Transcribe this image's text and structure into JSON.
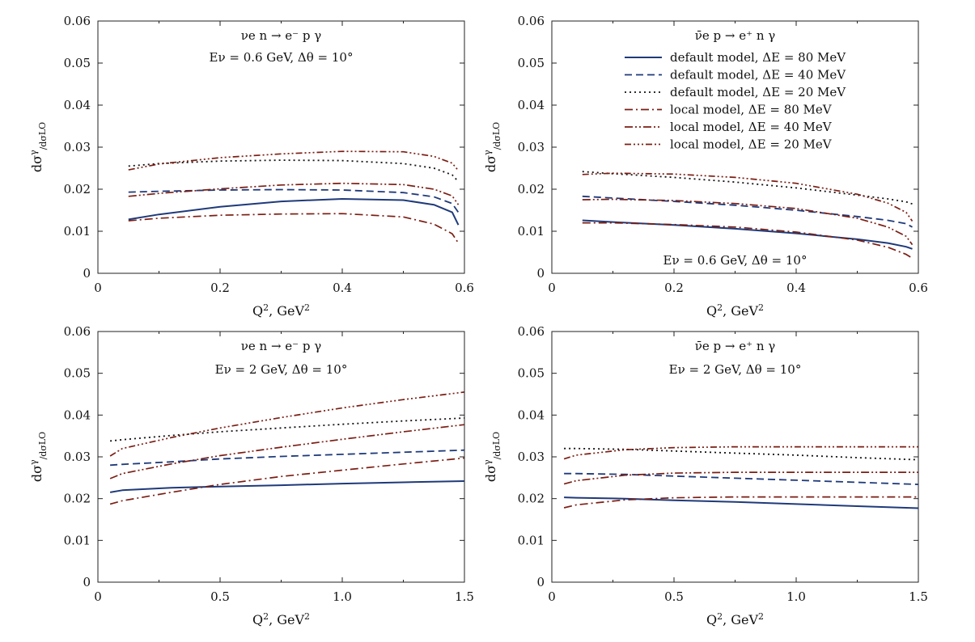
{
  "legend": {
    "entries": [
      "default model, ΔE = 80 MeV",
      "default model, ΔE = 40 MeV",
      "default model, ΔE = 20 MeV",
      "local model, ΔE = 80 MeV",
      "local model, ΔE = 40 MeV",
      "local model, ΔE = 20 MeV"
    ],
    "placement": "top-right panel, upper right"
  },
  "colors": {
    "default": "#1f3a7a",
    "local": "#7a1e14",
    "dotted": "#111111"
  },
  "chart_data": [
    {
      "type": "line",
      "reaction": "νe n → e⁻ p γ",
      "energy_label": "Eν = 0.6 GeV, Δθ = 10°",
      "xlabel": "Q², GeV²",
      "ylabel": "dσγ/dσLO",
      "xlim": [
        0,
        0.6
      ],
      "ylim": [
        0,
        0.06
      ],
      "xticks": [
        "0",
        "0.2",
        "0.4",
        "0.6"
      ],
      "yticks": [
        "0",
        "0.01",
        "0.02",
        "0.03",
        "0.04",
        "0.05",
        "0.06"
      ],
      "series": [
        {
          "name": "default model, ΔE = 80 MeV",
          "x": [
            0.05,
            0.1,
            0.2,
            0.3,
            0.4,
            0.5,
            0.55,
            0.58,
            0.59
          ],
          "y": [
            0.0128,
            0.014,
            0.0158,
            0.0171,
            0.0177,
            0.0174,
            0.0163,
            0.0145,
            0.0115
          ]
        },
        {
          "name": "default model, ΔE = 40 MeV",
          "x": [
            0.05,
            0.1,
            0.2,
            0.3,
            0.4,
            0.5,
            0.55,
            0.58,
            0.59
          ],
          "y": [
            0.0193,
            0.0195,
            0.0198,
            0.0199,
            0.0198,
            0.0192,
            0.0182,
            0.0166,
            0.0145
          ]
        },
        {
          "name": "default model, ΔE = 20 MeV",
          "x": [
            0.05,
            0.1,
            0.2,
            0.3,
            0.4,
            0.5,
            0.55,
            0.58,
            0.59
          ],
          "y": [
            0.0255,
            0.0261,
            0.0267,
            0.0269,
            0.0268,
            0.0261,
            0.025,
            0.0234,
            0.0218
          ]
        },
        {
          "name": "local model, ΔE = 80 MeV",
          "x": [
            0.05,
            0.1,
            0.2,
            0.3,
            0.4,
            0.5,
            0.55,
            0.58,
            0.59
          ],
          "y": [
            0.0125,
            0.0131,
            0.0138,
            0.0141,
            0.0142,
            0.0134,
            0.0117,
            0.0094,
            0.0072
          ]
        },
        {
          "name": "local model, ΔE = 40 MeV",
          "x": [
            0.05,
            0.1,
            0.2,
            0.3,
            0.4,
            0.5,
            0.55,
            0.58,
            0.59
          ],
          "y": [
            0.0183,
            0.019,
            0.0201,
            0.021,
            0.0214,
            0.0211,
            0.02,
            0.0184,
            0.0163
          ]
        },
        {
          "name": "local model, ΔE = 20 MeV",
          "x": [
            0.05,
            0.1,
            0.2,
            0.3,
            0.4,
            0.5,
            0.55,
            0.58,
            0.59
          ],
          "y": [
            0.0246,
            0.026,
            0.0275,
            0.0284,
            0.029,
            0.0289,
            0.0278,
            0.0262,
            0.0244
          ]
        }
      ]
    },
    {
      "type": "line",
      "reaction": "ν̄e p → e⁺ n γ",
      "energy_label": "Eν = 0.6 GeV, Δθ = 10°",
      "xlabel": "Q², GeV²",
      "ylabel": "dσγ/dσLO",
      "xlim": [
        0,
        0.6
      ],
      "ylim": [
        0,
        0.06
      ],
      "xticks": [
        "0",
        "0.2",
        "0.4",
        "0.6"
      ],
      "yticks": [
        "0",
        "0.01",
        "0.02",
        "0.03",
        "0.04",
        "0.05",
        "0.06"
      ],
      "series": [
        {
          "name": "default model, ΔE = 80 MeV",
          "x": [
            0.05,
            0.1,
            0.2,
            0.3,
            0.4,
            0.5,
            0.55,
            0.58,
            0.59
          ],
          "y": [
            0.0126,
            0.0122,
            0.0115,
            0.0106,
            0.0095,
            0.0081,
            0.0072,
            0.0063,
            0.0058
          ]
        },
        {
          "name": "default model, ΔE = 40 MeV",
          "x": [
            0.05,
            0.1,
            0.2,
            0.3,
            0.4,
            0.5,
            0.55,
            0.58,
            0.59
          ],
          "y": [
            0.0183,
            0.0179,
            0.0171,
            0.0162,
            0.015,
            0.0135,
            0.0126,
            0.0118,
            0.011
          ]
        },
        {
          "name": "default model, ΔE = 20 MeV",
          "x": [
            0.05,
            0.1,
            0.2,
            0.3,
            0.4,
            0.5,
            0.55,
            0.58,
            0.59
          ],
          "y": [
            0.0242,
            0.0237,
            0.0228,
            0.0217,
            0.0203,
            0.0186,
            0.0177,
            0.017,
            0.0165
          ]
        },
        {
          "name": "local model, ΔE = 80 MeV",
          "x": [
            0.05,
            0.1,
            0.2,
            0.3,
            0.4,
            0.5,
            0.55,
            0.58,
            0.59
          ],
          "y": [
            0.012,
            0.012,
            0.0116,
            0.011,
            0.0098,
            0.0079,
            0.0062,
            0.0045,
            0.0036
          ]
        },
        {
          "name": "local model, ΔE = 40 MeV",
          "x": [
            0.05,
            0.1,
            0.2,
            0.3,
            0.4,
            0.5,
            0.55,
            0.58,
            0.59
          ],
          "y": [
            0.0175,
            0.0176,
            0.0173,
            0.0166,
            0.0154,
            0.0131,
            0.011,
            0.0088,
            0.0068
          ]
        },
        {
          "name": "local model, ΔE = 20 MeV",
          "x": [
            0.05,
            0.1,
            0.2,
            0.3,
            0.4,
            0.5,
            0.55,
            0.58,
            0.59
          ],
          "y": [
            0.0235,
            0.0238,
            0.0236,
            0.0228,
            0.0214,
            0.0188,
            0.0167,
            0.0145,
            0.0124
          ]
        }
      ]
    },
    {
      "type": "line",
      "reaction": "νe n → e⁻ p γ",
      "energy_label": "Eν = 2 GeV, Δθ = 10°",
      "xlabel": "Q², GeV²",
      "ylabel": "dσγ/dσLO",
      "xlim": [
        0,
        1.5
      ],
      "ylim": [
        0,
        0.06
      ],
      "xticks": [
        "0",
        "0.5",
        "1.0",
        "1.5"
      ],
      "yticks": [
        "0",
        "0.01",
        "0.02",
        "0.03",
        "0.04",
        "0.05",
        "0.06"
      ],
      "series": [
        {
          "name": "default model, ΔE = 80 MeV",
          "x": [
            0.05,
            0.1,
            0.3,
            0.5,
            0.75,
            1.0,
            1.25,
            1.5
          ],
          "y": [
            0.0215,
            0.022,
            0.0226,
            0.0229,
            0.0232,
            0.0236,
            0.0239,
            0.0242
          ]
        },
        {
          "name": "default model, ΔE = 40 MeV",
          "x": [
            0.05,
            0.1,
            0.3,
            0.5,
            0.75,
            1.0,
            1.25,
            1.5
          ],
          "y": [
            0.028,
            0.0282,
            0.0288,
            0.0295,
            0.0301,
            0.0306,
            0.0311,
            0.0316
          ]
        },
        {
          "name": "default model, ΔE = 20 MeV",
          "x": [
            0.05,
            0.1,
            0.3,
            0.5,
            0.75,
            1.0,
            1.25,
            1.5
          ],
          "y": [
            0.0338,
            0.0341,
            0.0351,
            0.036,
            0.0369,
            0.0378,
            0.0386,
            0.0393
          ]
        },
        {
          "name": "local model, ΔE = 80 MeV",
          "x": [
            0.05,
            0.1,
            0.3,
            0.5,
            0.75,
            1.0,
            1.25,
            1.5
          ],
          "y": [
            0.0187,
            0.0195,
            0.0215,
            0.0234,
            0.0253,
            0.0268,
            0.0283,
            0.0297
          ]
        },
        {
          "name": "local model, ΔE = 40 MeV",
          "x": [
            0.05,
            0.1,
            0.3,
            0.5,
            0.75,
            1.0,
            1.25,
            1.5
          ],
          "y": [
            0.0248,
            0.026,
            0.0283,
            0.0303,
            0.0323,
            0.0342,
            0.036,
            0.0377
          ]
        },
        {
          "name": "local model, ΔE = 20 MeV",
          "x": [
            0.05,
            0.1,
            0.3,
            0.5,
            0.75,
            1.0,
            1.25,
            1.5
          ],
          "y": [
            0.0302,
            0.032,
            0.0346,
            0.0369,
            0.0394,
            0.0417,
            0.0437,
            0.0455
          ]
        }
      ]
    },
    {
      "type": "line",
      "reaction": "ν̄e p → e⁺ n γ",
      "energy_label": "Eν = 2 GeV, Δθ = 10°",
      "xlabel": "Q², GeV²",
      "ylabel": "dσγ/dσLO",
      "xlim": [
        0,
        1.5
      ],
      "ylim": [
        0,
        0.06
      ],
      "xticks": [
        "0",
        "0.5",
        "1.0",
        "1.5"
      ],
      "yticks": [
        "0",
        "0.01",
        "0.02",
        "0.03",
        "0.04",
        "0.05",
        "0.06"
      ],
      "series": [
        {
          "name": "default model, ΔE = 80 MeV",
          "x": [
            0.05,
            0.1,
            0.3,
            0.5,
            0.75,
            1.0,
            1.25,
            1.5
          ],
          "y": [
            0.0203,
            0.0202,
            0.02,
            0.0196,
            0.0192,
            0.0187,
            0.0182,
            0.0177
          ]
        },
        {
          "name": "default model, ΔE = 40 MeV",
          "x": [
            0.05,
            0.1,
            0.3,
            0.5,
            0.75,
            1.0,
            1.25,
            1.5
          ],
          "y": [
            0.026,
            0.026,
            0.0258,
            0.0254,
            0.0249,
            0.0244,
            0.0239,
            0.0234
          ]
        },
        {
          "name": "default model, ΔE = 20 MeV",
          "x": [
            0.05,
            0.1,
            0.3,
            0.5,
            0.75,
            1.0,
            1.25,
            1.5
          ],
          "y": [
            0.032,
            0.032,
            0.0318,
            0.0314,
            0.0309,
            0.0304,
            0.0298,
            0.0293
          ]
        },
        {
          "name": "local model, ΔE = 80 MeV",
          "x": [
            0.05,
            0.1,
            0.3,
            0.5,
            0.75,
            1.0,
            1.25,
            1.5
          ],
          "y": [
            0.0178,
            0.0185,
            0.0197,
            0.0202,
            0.0204,
            0.0204,
            0.0204,
            0.0204
          ]
        },
        {
          "name": "local model, ΔE = 40 MeV",
          "x": [
            0.05,
            0.1,
            0.3,
            0.5,
            0.75,
            1.0,
            1.25,
            1.5
          ],
          "y": [
            0.0235,
            0.0243,
            0.0256,
            0.0261,
            0.0263,
            0.0263,
            0.0263,
            0.0263
          ]
        },
        {
          "name": "local model, ΔE = 20 MeV",
          "x": [
            0.05,
            0.1,
            0.3,
            0.5,
            0.75,
            1.0,
            1.25,
            1.5
          ],
          "y": [
            0.0295,
            0.0304,
            0.0317,
            0.0322,
            0.0324,
            0.0324,
            0.0324,
            0.0324
          ]
        }
      ]
    }
  ]
}
